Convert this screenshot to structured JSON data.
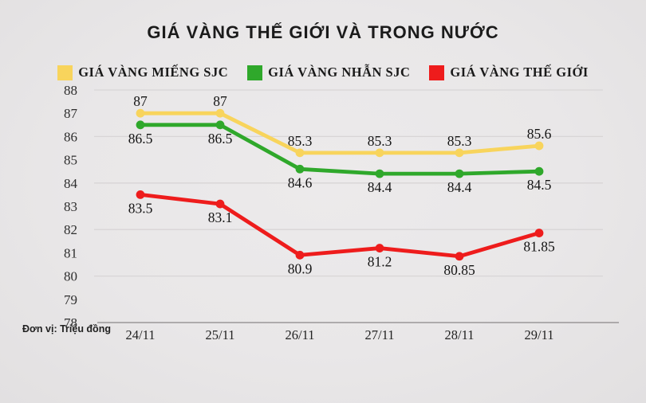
{
  "title": "GIÁ VÀNG THẾ GIỚI VÀ TRONG NƯỚC",
  "unit_label": "Đơn vị: Triệu đồng",
  "chart_data": {
    "type": "line",
    "categories": [
      "24/11",
      "25/11",
      "26/11",
      "27/11",
      "28/11",
      "29/11"
    ],
    "series": [
      {
        "name": "GIÁ VÀNG MIẾNG SJC",
        "color": "#F8D45C",
        "values": [
          87,
          87,
          85.3,
          85.3,
          85.3,
          85.6
        ],
        "label_position": "above"
      },
      {
        "name": "GIÁ VÀNG NHẪN SJC",
        "color": "#2FA82B",
        "values": [
          86.5,
          86.5,
          84.6,
          84.4,
          84.4,
          84.5
        ],
        "label_position": "below"
      },
      {
        "name": "GIÁ VÀNG THẾ GIỚI",
        "color": "#EE1C1C",
        "values": [
          83.5,
          83.1,
          80.9,
          81.2,
          80.85,
          81.85
        ],
        "label_position": "below"
      }
    ],
    "ylim": [
      78,
      88
    ],
    "y_ticks": [
      88,
      87,
      86,
      85,
      84,
      83,
      82,
      81,
      80,
      79,
      78
    ],
    "gridline_values": [
      88,
      86,
      84,
      82,
      80
    ],
    "baseline_value": 78,
    "grid": "horizontal",
    "legend_position": "top",
    "xlabel": "",
    "ylabel": ""
  },
  "colors": {
    "background": "#E9E7E8",
    "gridline": "#D8D5D6",
    "axis_line": "#9A9798",
    "text": "#1B1B1B"
  }
}
